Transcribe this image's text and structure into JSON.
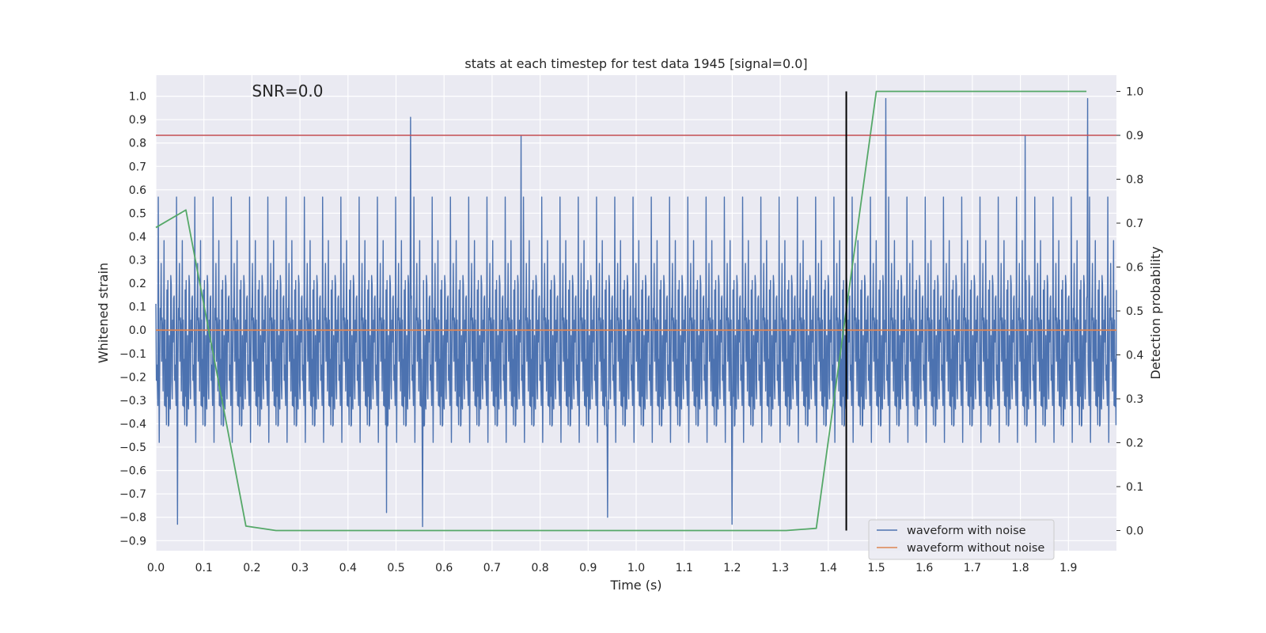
{
  "chart_data": {
    "type": "line",
    "title": "stats at each timestep for test data 1945 [signal=0.0]",
    "xlabel": "Time (s)",
    "ylabel_left": "Whitened strain",
    "ylabel_right": "Detection probability",
    "annotation": "SNR=0.0",
    "xlim": [
      0.0,
      2.0
    ],
    "ylim_left": [
      -0.943,
      1.09
    ],
    "ylim_right": [
      -0.046,
      1.037
    ],
    "x_ticks": [
      0.0,
      0.1,
      0.2,
      0.3,
      0.4,
      0.5,
      0.6,
      0.7,
      0.8,
      0.9,
      1.0,
      1.1,
      1.2,
      1.3,
      1.4,
      1.5,
      1.6,
      1.7,
      1.8,
      1.9
    ],
    "y_ticks_left": [
      -0.9,
      -0.8,
      -0.7,
      -0.6,
      -0.5,
      -0.4,
      -0.3,
      -0.2,
      -0.1,
      0.0,
      0.1,
      0.2,
      0.3,
      0.4,
      0.5,
      0.6,
      0.7,
      0.8,
      0.9,
      1.0
    ],
    "y_ticks_right": [
      0.0,
      0.1,
      0.2,
      0.3,
      0.4,
      0.5,
      0.6,
      0.7,
      0.8,
      0.9,
      1.0
    ],
    "grid": true,
    "legend_position": "lower-right",
    "legend": [
      {
        "label": "waveform with noise",
        "color": "#4c72b0"
      },
      {
        "label": "waveform without noise",
        "color": "#dd8452"
      }
    ],
    "series": [
      {
        "name": "waveform with noise",
        "axis": "left",
        "color": "#4c72b0",
        "style": "dense noisy trace, approx. uniform sampling over 0–2 s",
        "x_range": [
          0.0,
          2.0
        ],
        "num_points": 2000,
        "y_range_observed": [
          -0.84,
          0.99
        ],
        "peaks": [
          {
            "x": 0.53,
            "y": 0.91
          },
          {
            "x": 0.76,
            "y": 0.83
          },
          {
            "x": 1.52,
            "y": 0.99
          },
          {
            "x": 1.81,
            "y": 0.83
          },
          {
            "x": 1.94,
            "y": 0.99
          },
          {
            "x": 0.045,
            "y": -0.83
          },
          {
            "x": 0.555,
            "y": -0.84
          },
          {
            "x": 0.48,
            "y": -0.78
          },
          {
            "x": 0.94,
            "y": -0.8
          },
          {
            "x": 1.2,
            "y": -0.83
          }
        ]
      },
      {
        "name": "waveform without noise",
        "axis": "left",
        "color": "#dd8452",
        "x": [
          0.0,
          2.0
        ],
        "y": [
          0.0,
          0.0
        ]
      },
      {
        "axis": "right",
        "color": "#55a868",
        "x": [
          0.0,
          0.0625,
          0.1875,
          0.25,
          1.3125,
          1.375,
          1.5,
          1.9375
        ],
        "y": [
          0.69,
          0.73,
          0.01,
          0.0,
          0.0,
          0.005,
          1.0,
          1.0
        ]
      },
      {
        "axis": "right",
        "color": "#c44e52",
        "type": "hline",
        "y": 0.9
      },
      {
        "axis": "right",
        "color": "#000000",
        "type": "vline",
        "x": 1.4375,
        "y_range": [
          0.0,
          1.0
        ]
      }
    ]
  }
}
